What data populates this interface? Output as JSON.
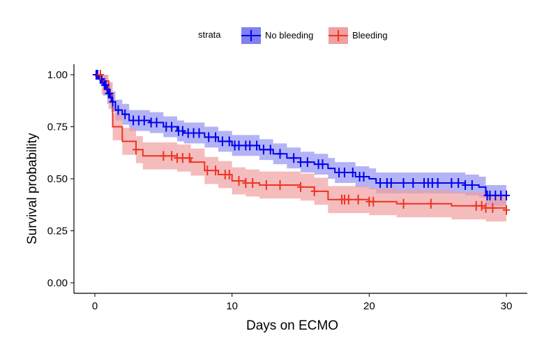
{
  "chart_data": {
    "type": "line",
    "subtype": "kaplan-meier step curves with confidence bands and censor marks",
    "xlabel": "Days on ECMO",
    "ylabel": "Survival probability",
    "xlim": [
      0,
      30
    ],
    "ylim": [
      0,
      1
    ],
    "xticks": [
      "0",
      "10",
      "20",
      "30"
    ],
    "yticks": [
      "0.00",
      "0.25",
      "0.50",
      "0.75",
      "1.00"
    ],
    "grid": false,
    "legend": {
      "title": "strata",
      "placement": "top"
    },
    "series": [
      {
        "name": "No bleeding",
        "color": "#0000EE",
        "band_color": "#8080F0",
        "steps": [
          [
            0,
            1.0
          ],
          [
            0.3,
            0.98
          ],
          [
            0.6,
            0.95
          ],
          [
            0.9,
            0.91
          ],
          [
            1.2,
            0.87
          ],
          [
            1.5,
            0.83
          ],
          [
            2.0,
            0.81
          ],
          [
            2.5,
            0.78
          ],
          [
            4,
            0.77
          ],
          [
            5,
            0.75
          ],
          [
            6,
            0.73
          ],
          [
            6.5,
            0.72
          ],
          [
            8,
            0.7
          ],
          [
            9,
            0.68
          ],
          [
            10,
            0.66
          ],
          [
            12,
            0.64
          ],
          [
            13,
            0.62
          ],
          [
            14,
            0.6
          ],
          [
            15,
            0.58
          ],
          [
            16,
            0.57
          ],
          [
            17,
            0.55
          ],
          [
            17.5,
            0.53
          ],
          [
            19,
            0.51
          ],
          [
            20,
            0.5
          ],
          [
            20.5,
            0.48
          ],
          [
            27,
            0.47
          ],
          [
            28,
            0.46
          ],
          [
            28.5,
            0.42
          ],
          [
            30,
            0.42
          ]
        ],
        "ci_half_width": 0.05,
        "censor": [
          0.1,
          0.2,
          0.4,
          0.5,
          0.7,
          0.8,
          1.0,
          1.1,
          1.3,
          1.7,
          2.2,
          2.8,
          3.2,
          3.6,
          4.1,
          4.5,
          5.2,
          5.6,
          6.1,
          6.4,
          6.8,
          7.2,
          7.6,
          8.3,
          8.8,
          9.3,
          9.8,
          10.2,
          10.5,
          11.0,
          11.3,
          11.8,
          12.3,
          12.8,
          13.5,
          14.5,
          15.0,
          15.5,
          16.3,
          16.6,
          17.8,
          18.2,
          18.8,
          19.3,
          19.6,
          20.8,
          21.3,
          21.6,
          22.5,
          23.2,
          24.0,
          24.3,
          24.6,
          25.0,
          26.0,
          26.5,
          27.0,
          27.5,
          28.6,
          28.8,
          29.2,
          29.6,
          30.0
        ]
      },
      {
        "name": "Bleeding",
        "color": "#EE3322",
        "band_color": "#F0A0A0",
        "steps": [
          [
            0,
            1.0
          ],
          [
            0.5,
            0.97
          ],
          [
            1.0,
            0.9
          ],
          [
            1.3,
            0.75
          ],
          [
            2.0,
            0.68
          ],
          [
            3.0,
            0.64
          ],
          [
            3.5,
            0.61
          ],
          [
            6.0,
            0.6
          ],
          [
            7.0,
            0.58
          ],
          [
            8.0,
            0.54
          ],
          [
            9.0,
            0.52
          ],
          [
            10.0,
            0.49
          ],
          [
            11.0,
            0.48
          ],
          [
            12.0,
            0.47
          ],
          [
            15.0,
            0.46
          ],
          [
            16.0,
            0.44
          ],
          [
            17.0,
            0.4
          ],
          [
            20.0,
            0.39
          ],
          [
            22.0,
            0.38
          ],
          [
            26.0,
            0.37
          ],
          [
            28.5,
            0.36
          ],
          [
            30,
            0.35
          ]
        ],
        "ci_half_width": 0.065,
        "censor": [
          0.4,
          3.0,
          5.0,
          5.6,
          6.0,
          6.4,
          6.9,
          8.2,
          8.8,
          9.5,
          9.8,
          10.5,
          11.0,
          11.5,
          12.5,
          13.5,
          15.0,
          16.0,
          18.0,
          18.2,
          18.5,
          19.2,
          20.0,
          20.3,
          22.5,
          24.5,
          27.8,
          28.2,
          28.5,
          29.0,
          30.0
        ]
      }
    ]
  }
}
